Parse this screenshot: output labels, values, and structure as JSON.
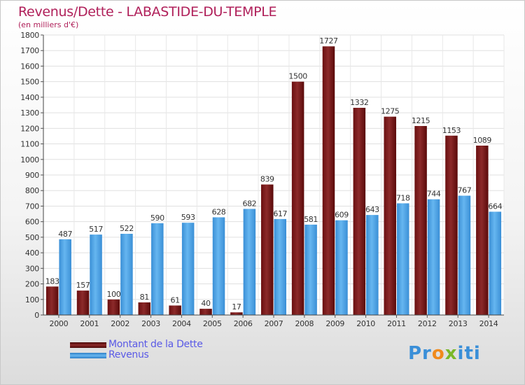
{
  "title": "Revenus/Dette - LABASTIDE-DU-TEMPLE",
  "subtitle": "(en milliers d'€)",
  "logo": {
    "p1": "Pr",
    "p2": "o",
    "p3": "x",
    "p4": "iti"
  },
  "colors": {
    "dette": "#7a1a1a",
    "revenus": "#4aa3e6",
    "title": "#b0205a",
    "legend_text": "#5a5ae6"
  },
  "chart_data": {
    "type": "bar",
    "title": "Revenus/Dette - LABASTIDE-DU-TEMPLE",
    "subtitle": "(en milliers d'€)",
    "categories": [
      "2000",
      "2001",
      "2002",
      "2003",
      "2004",
      "2005",
      "2006",
      "2007",
      "2008",
      "2009",
      "2010",
      "2011",
      "2012",
      "2013",
      "2014"
    ],
    "series": [
      {
        "name": "Montant de la Dette",
        "values": [
          183,
          157,
          100,
          81,
          61,
          40,
          17,
          839,
          1500,
          1727,
          1332,
          1275,
          1215,
          1153,
          1089
        ]
      },
      {
        "name": "Revenus",
        "values": [
          487,
          517,
          522,
          590,
          593,
          628,
          682,
          617,
          581,
          609,
          643,
          718,
          744,
          767,
          664
        ]
      }
    ],
    "yticks": [
      "0",
      "100",
      "200",
      "300",
      "400",
      "500",
      "600",
      "700",
      "800",
      "900",
      "1000",
      "1100",
      "1200",
      "1300",
      "1400",
      "1500",
      "1600",
      "1700",
      "1800"
    ],
    "ylim": [
      0,
      1800
    ],
    "grid": true,
    "legend_position": "bottom-left"
  }
}
